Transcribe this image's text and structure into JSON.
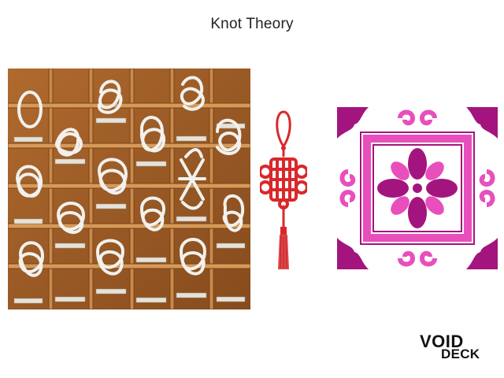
{
  "title": "Knot Theory",
  "images": {
    "knot_board": "knot-display-board-photo",
    "chinese_knot": "chinese-knot-ornament",
    "tile": "peranakan-tile-pattern"
  },
  "logo": {
    "line1": "VOID",
    "line2": "DECK"
  },
  "colors": {
    "wood": "#a0622d",
    "rope": "#f1f1ee",
    "knot_red": "#d9282b",
    "tile_pink": "#e84fbd",
    "tile_magenta": "#a4147e"
  }
}
